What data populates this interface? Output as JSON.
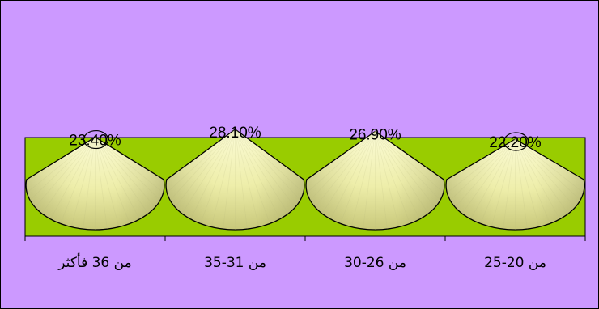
{
  "chart_data": {
    "type": "bar",
    "bar_shape": "cone",
    "categories": [
      "من 20-25",
      "من 26-30",
      "من 31-35",
      "من 36 فأكثر"
    ],
    "category_order": "right-to-left",
    "values": [
      22.2,
      26.9,
      28.1,
      23.4
    ],
    "data_labels": [
      "22.20%",
      "26.90%",
      "28.10%",
      "23.40%"
    ],
    "title": "",
    "xlabel": "",
    "ylabel": "",
    "grid": false,
    "legend": "none"
  },
  "colors": {
    "chart_area": "#cc99ff",
    "plot_area": "#99cc00",
    "cone_light": "#fbfbd6",
    "cone_mid": "#eeeeaa",
    "cone_dark": "#c8c87a",
    "outline": "#000000"
  }
}
